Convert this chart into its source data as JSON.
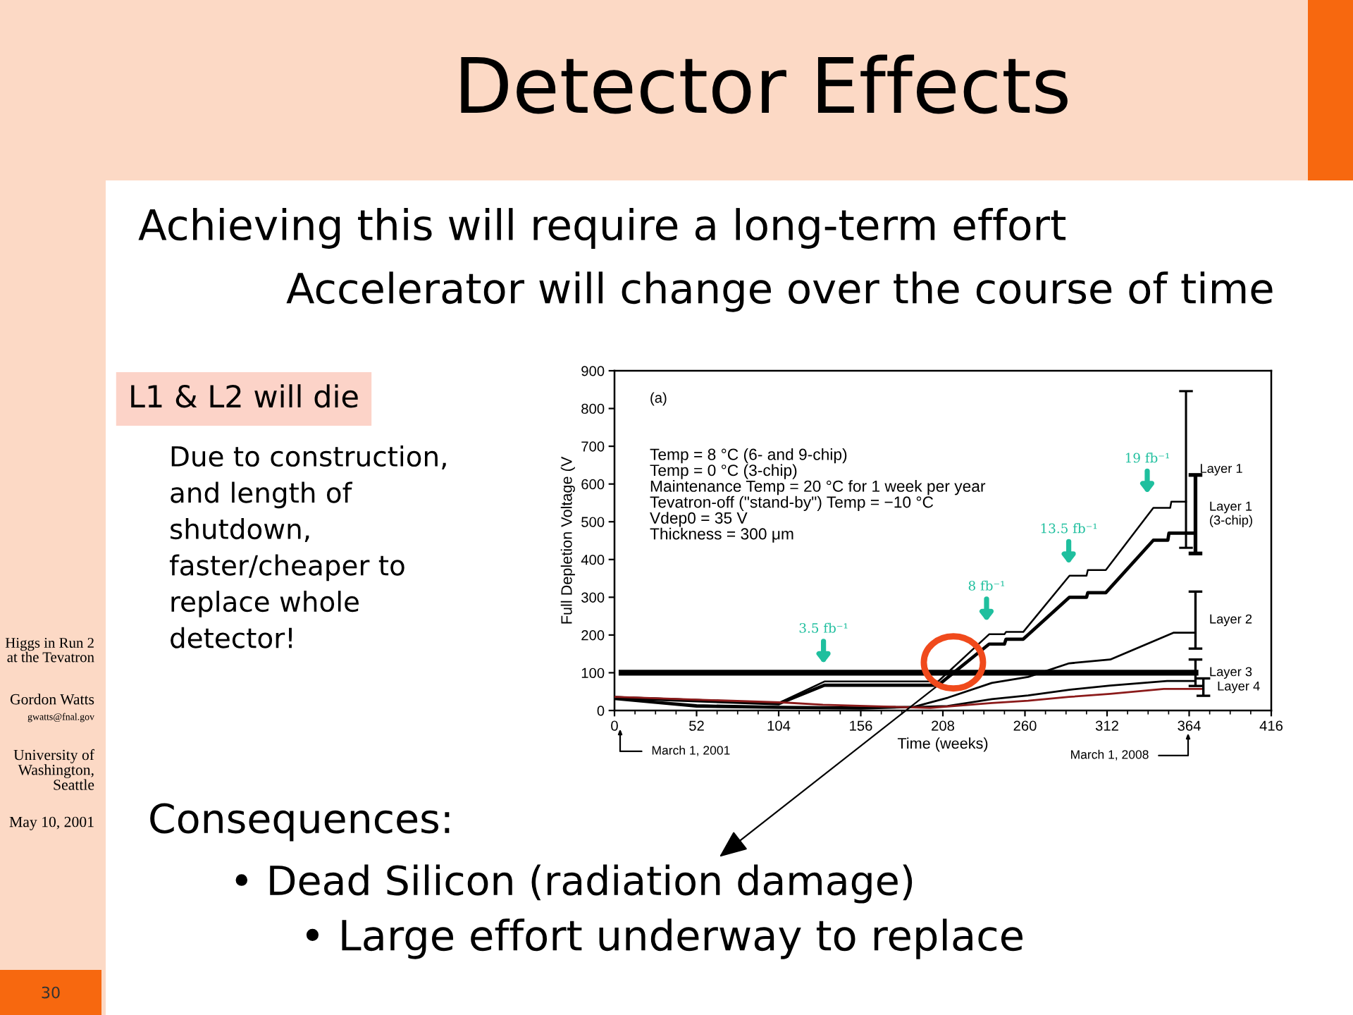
{
  "chart_data": {
    "type": "line",
    "title": "Detector Effects",
    "subtitle": "Achieving this will require a long-term effort",
    "xlabel": "Time (weeks)",
    "ylabel": "Full Depletion Voltage (V",
    "xlim": [
      0,
      416
    ],
    "ylim": [
      0,
      900
    ],
    "xticks": [
      0,
      52,
      104,
      156,
      208,
      260,
      312,
      364,
      416
    ],
    "yticks": [
      0,
      100,
      200,
      300,
      400,
      500,
      600,
      700,
      800,
      900
    ],
    "series": [
      {
        "name": "Layer 1",
        "color": "#000000",
        "x": [
          0,
          104,
          133,
          205,
          237.3,
          247,
          248,
          258.9,
          288.2,
          299,
          299.8,
          311.2,
          341.3,
          352,
          352.7,
          362
        ],
        "values": [
          36,
          20,
          77,
          77,
          202,
          202,
          208,
          208,
          357,
          357,
          372,
          372,
          537,
          537,
          553,
          553
        ],
        "errors": [
          null,
          null,
          null,
          null,
          null,
          null,
          null,
          null,
          null,
          null,
          null,
          null,
          null,
          null,
          null,
          [
            431,
            846
          ]
        ]
      },
      {
        "name": "Layer 1\n(3-chip)",
        "color": "#000000",
        "x": [
          0,
          104,
          133,
          205,
          237.3,
          247,
          248,
          258.9,
          288.2,
          299,
          299.8,
          311.2,
          341.3,
          350.5,
          351.2,
          368
        ],
        "values": [
          34,
          18,
          67,
          67,
          176,
          176,
          189,
          189,
          300,
          300,
          312,
          312,
          451,
          451,
          470,
          470
        ],
        "errors": [
          null,
          null,
          null,
          null,
          null,
          null,
          null,
          null,
          null,
          null,
          null,
          null,
          null,
          null,
          null,
          [
            416,
            624
          ]
        ]
      },
      {
        "name": "Layer 2",
        "color": "#000000",
        "x": [
          0,
          52,
          104,
          156,
          190,
          211.2,
          239,
          262,
          288,
          314,
          354,
          368
        ],
        "values": [
          32,
          14,
          10,
          8,
          10,
          34,
          73,
          89,
          125,
          135,
          206,
          206
        ],
        "errors": [
          null,
          null,
          null,
          null,
          null,
          null,
          null,
          null,
          null,
          null,
          null,
          [
            164,
            315
          ]
        ]
      },
      {
        "name": "Layer 3",
        "color": "#000000",
        "x": [
          0,
          52,
          104,
          156,
          211,
          239,
          262,
          288,
          314,
          350,
          368
        ],
        "values": [
          30,
          10,
          7,
          5,
          12,
          30,
          40,
          55,
          66,
          78,
          78
        ],
        "errors": [
          null,
          null,
          null,
          null,
          null,
          null,
          null,
          null,
          null,
          null,
          [
            65,
            135
          ]
        ]
      },
      {
        "name": "Layer 4",
        "color": "#8b1a1a",
        "x": [
          0,
          108,
          132,
          200,
          239,
          262,
          288,
          314,
          348,
          373
        ],
        "values": [
          36,
          21,
          15,
          7,
          20,
          26,
          36,
          44,
          57,
          57
        ],
        "errors": [
          null,
          null,
          null,
          null,
          null,
          null,
          null,
          null,
          null,
          [
            39,
            85
          ]
        ]
      },
      {
        "color": "#000000",
        "x": [
          4.5,
          368
        ],
        "values": [
          100,
          100
        ]
      }
    ],
    "annotations": [
      "Accelerator will change over the course of time",
      "L1 & L2 will die",
      "Due to construction,\nand length of\nshutdown,\nfaster/cheaper to\nreplace whole\ndetector!",
      "(a)",
      "Temp = 8 °C (6- and 9-chip)\nTemp = 0 °C (3-chip)\nMaintenance Temp = 20 °C for 1 week per year\nTevatron-off (\"stand-by\") Temp = −10 °C\nVdep0 = 35 V\nThickness = 300 μm",
      "3.5 fb⁻¹",
      "8 fb⁻¹",
      "13.5 fb⁻¹",
      "19 fb⁻¹",
      "March 1, 2001",
      "March 1, 2008",
      "Consequences:",
      {
        "text": "• Dead Silicon (radiation damage)",
        "x": 212,
        "y": 90
      },
      "• Large effort underway to replace",
      "Higgs in Run 2\nat the Tevatron",
      "Gordon Watts",
      "gwatts@fnal.gov",
      "University of\nWashington,\nSeattle",
      "May 10, 2001",
      "30"
    ]
  }
}
